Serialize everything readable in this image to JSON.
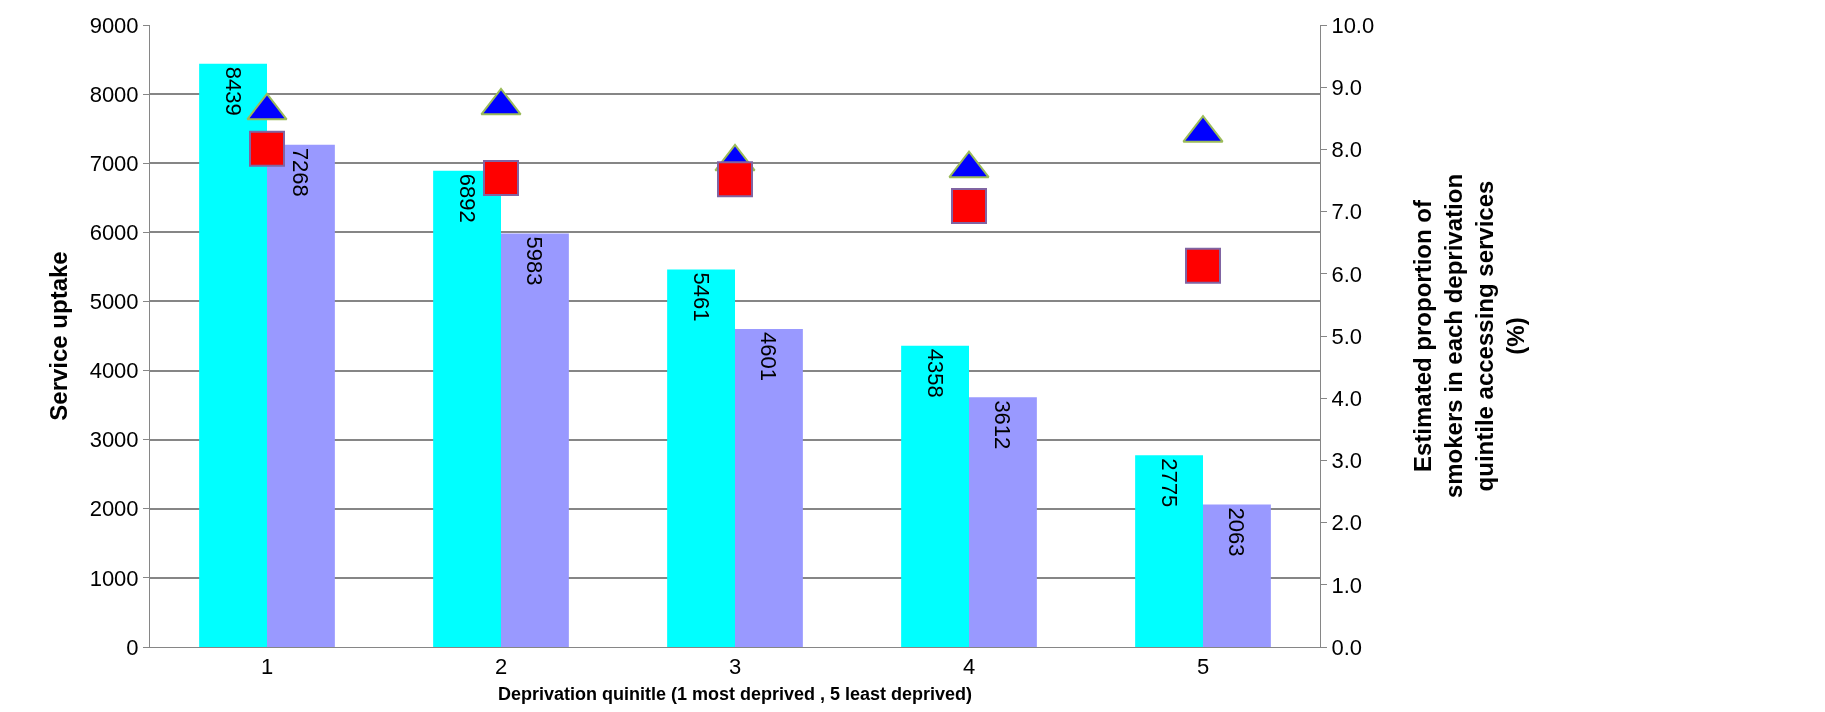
{
  "chart_data": {
    "type": "bar",
    "categories": [
      "1",
      "2",
      "3",
      "4",
      "5"
    ],
    "series": [
      {
        "color": "#00ffff",
        "values": [
          8439,
          6892,
          5461,
          4358,
          2775
        ],
        "value_labels": [
          "8439",
          "6892",
          "5461",
          "4358",
          "2775"
        ]
      },
      {
        "color": "#9999ff",
        "values": [
          7268,
          5983,
          4601,
          3612,
          2063
        ],
        "value_labels": [
          "7268",
          "5983",
          "4601",
          "3612",
          "2063"
        ]
      },
      {
        "type": "scatter",
        "axis": "y2",
        "marker": "triangle",
        "color": "#0000ff",
        "values": [
          8.62,
          8.7,
          7.8,
          7.69,
          8.26
        ]
      },
      {
        "type": "scatter",
        "axis": "y2",
        "marker": "square",
        "color": "#ff0000",
        "values": [
          8.01,
          7.54,
          7.52,
          7.09,
          6.13
        ]
      }
    ],
    "xlabel": "Deprivation quinitle (1 most deprived , 5 least deprived)",
    "ylabel": "Service uptake",
    "y2label": "Estimated proportion of\nsmokers in each deprivation\nquintile accessing services\n(%)",
    "ylim": [
      0,
      9000
    ],
    "yticks": [
      0,
      1000,
      2000,
      3000,
      4000,
      5000,
      6000,
      7000,
      8000,
      9000
    ],
    "y2lim": [
      0,
      10
    ],
    "y2ticks": [
      {
        "value": 0,
        "label": "0.0"
      },
      {
        "value": 1,
        "label": "1.0"
      },
      {
        "value": 2,
        "label": "2.0"
      },
      {
        "value": 3,
        "label": "3.0"
      },
      {
        "value": 4,
        "label": "4.0"
      },
      {
        "value": 5,
        "label": "5.0"
      },
      {
        "value": 6,
        "label": "6.0"
      },
      {
        "value": 7,
        "label": "7.0"
      },
      {
        "value": 8,
        "label": "8.0"
      },
      {
        "value": 9,
        "label": "9.0"
      },
      {
        "value": 10,
        "label": "10.0"
      }
    ],
    "grid": "y",
    "legend": false
  }
}
